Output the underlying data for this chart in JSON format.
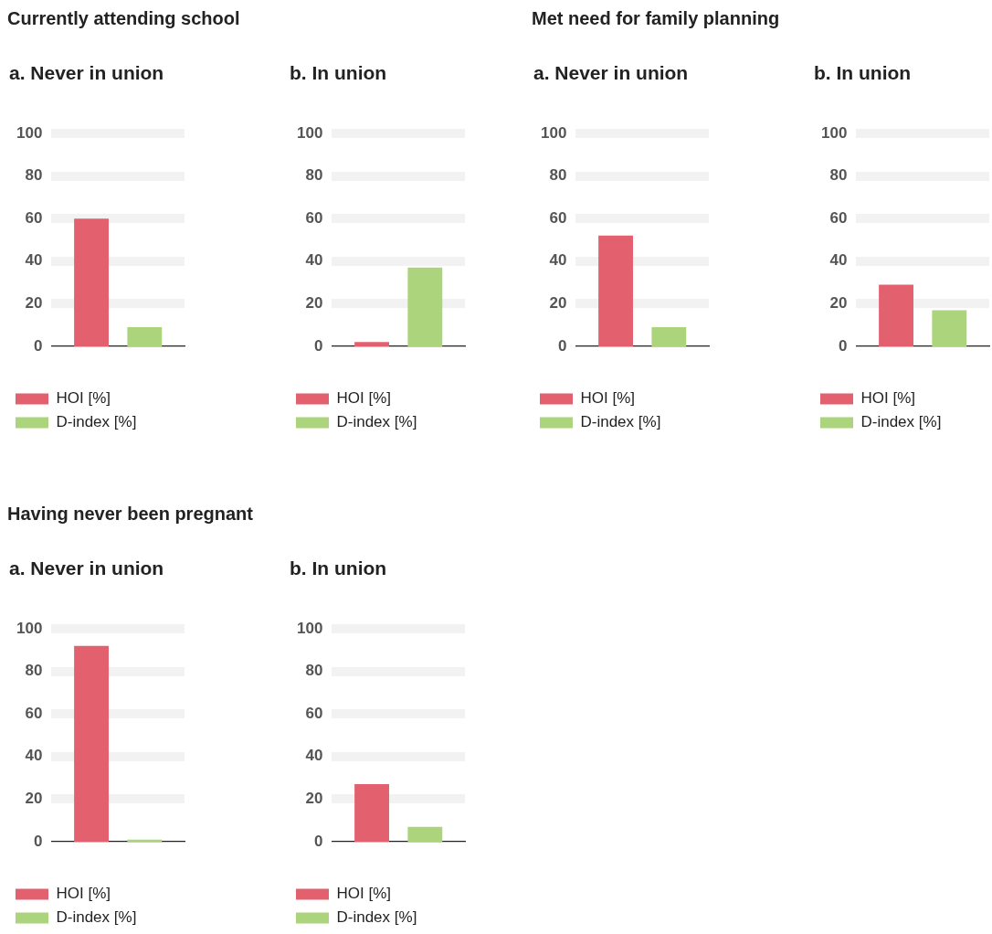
{
  "chart_data": [
    {
      "type": "bar",
      "title": "Currently attending school",
      "subtitle": "a. Never in union",
      "categories": [
        null
      ],
      "series": [
        {
          "name": "HOI [%]",
          "color": "#e3616e",
          "values": [
            60
          ]
        },
        {
          "name": "D-index [%]",
          "color": "#acd47c",
          "values": [
            9
          ]
        }
      ],
      "ylim": [
        0,
        100
      ],
      "yticks": [
        0,
        20,
        40,
        60,
        80,
        100
      ],
      "grid": "y",
      "legend": "bottom"
    },
    {
      "type": "bar",
      "subtitle": "b. In union",
      "categories": [
        null
      ],
      "series": [
        {
          "name": "HOI [%]",
          "color": "#e3616e",
          "values": [
            2
          ]
        },
        {
          "name": "D-index [%]",
          "color": "#acd47c",
          "values": [
            37
          ]
        }
      ],
      "ylim": [
        0,
        100
      ],
      "yticks": [
        0,
        20,
        40,
        60,
        80,
        100
      ],
      "grid": "y",
      "legend": "bottom"
    },
    {
      "type": "bar",
      "title": "Met need for family planning",
      "subtitle": "a. Never in union",
      "categories": [
        null
      ],
      "series": [
        {
          "name": "HOI [%]",
          "color": "#e3616e",
          "values": [
            52
          ]
        },
        {
          "name": "D-index [%]",
          "color": "#acd47c",
          "values": [
            9
          ]
        }
      ],
      "ylim": [
        0,
        100
      ],
      "yticks": [
        0,
        20,
        40,
        60,
        80,
        100
      ],
      "grid": "y",
      "legend": "bottom"
    },
    {
      "type": "bar",
      "subtitle": "b. In union",
      "categories": [
        null
      ],
      "series": [
        {
          "name": "HOI [%]",
          "color": "#e3616e",
          "values": [
            29
          ]
        },
        {
          "name": "D-index [%]",
          "color": "#acd47c",
          "values": [
            17
          ]
        }
      ],
      "ylim": [
        0,
        100
      ],
      "yticks": [
        0,
        20,
        40,
        60,
        80,
        100
      ],
      "grid": "y",
      "legend": "bottom"
    },
    {
      "type": "bar",
      "title": "Having never been pregnant",
      "subtitle": "a. Never in union",
      "categories": [
        null
      ],
      "series": [
        {
          "name": "HOI [%]",
          "color": "#e3616e",
          "values": [
            92
          ]
        },
        {
          "name": "D-index [%]",
          "color": "#acd47c",
          "values": [
            1
          ]
        }
      ],
      "ylim": [
        0,
        100
      ],
      "yticks": [
        0,
        20,
        40,
        60,
        80,
        100
      ],
      "grid": "y",
      "legend": "bottom"
    },
    {
      "type": "bar",
      "subtitle": "b. In union",
      "categories": [
        null
      ],
      "series": [
        {
          "name": "HOI [%]",
          "color": "#e3616e",
          "values": [
            27
          ]
        },
        {
          "name": "D-index [%]",
          "color": "#acd47c",
          "values": [
            7
          ]
        }
      ],
      "ylim": [
        0,
        100
      ],
      "yticks": [
        0,
        20,
        40,
        60,
        80,
        100
      ],
      "grid": "y",
      "legend": "bottom"
    }
  ]
}
